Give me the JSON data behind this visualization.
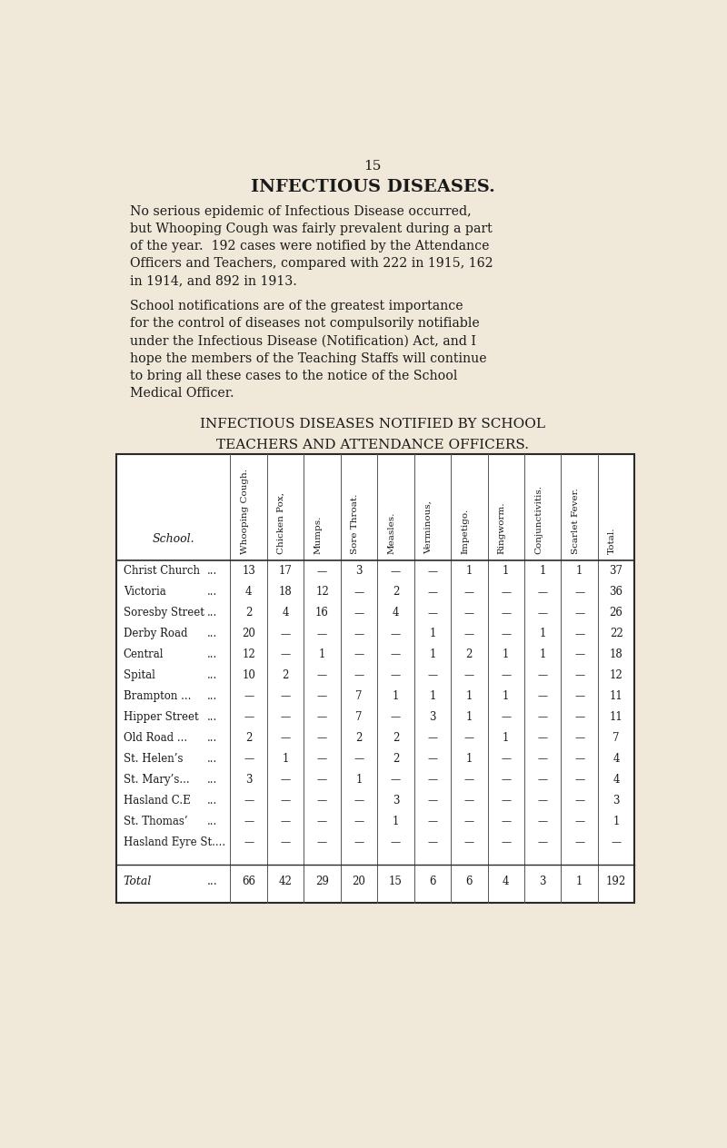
{
  "bg_color": "#f0e8d8",
  "page_number": "15",
  "title": "INFECTIOUS DISEASES.",
  "paragraph1_lines": [
    "No serious epidemic of Infectious Disease occurred,",
    "but Whooping Cough was fairly prevalent during a part",
    "of the year.  192 cases were notified by the Attendance",
    "Officers and Teachers, compared with 222 in 1915, 162",
    "in 1914, and 892 in 1913."
  ],
  "paragraph2_lines": [
    "School notifications are of the greatest importance",
    "for the control of diseases not compulsorily notifiable",
    "under the Infectious Disease (Notification) Act, and I",
    "hope the members of the Teaching Staffs will continue",
    "to bring all these cases to the notice of the School",
    "Medical Officer."
  ],
  "table_title1": "INFECTIOUS DISEASES NOTIFIED BY SCHOOL",
  "table_title2": "TEACHERS AND ATTENDANCE OFFICERS.",
  "col_headers": [
    "Whooping Cough.",
    "Chicken Pox,",
    "Mumps.",
    "Sore Throat.",
    "Measles.",
    "Verminous,",
    "Impetigo.",
    "Ringworm.",
    "Conjunctivitis.",
    "Scarlet Fever.",
    "Total."
  ],
  "row_label": "School.",
  "schools": [
    "Christ Church   ...",
    "Victoria   ...",
    "Soresby Street   ...",
    "Derby Road   ...",
    "Central   ...",
    "Spital   ...",
    "Brampton ...   ...",
    "Hipper Street   ...",
    "Old Road ...   ...",
    "St. Helen's   ...",
    "St. Mary's...   ...",
    "Hasland C.E   ...",
    "St. Thomas'   ...",
    "Hasland Eyre St...."
  ],
  "school_display": [
    [
      "Christ Church",
      "..."
    ],
    [
      "Victoria",
      "..."
    ],
    [
      "Soresby Street",
      "..."
    ],
    [
      "Derby Road",
      "..."
    ],
    [
      "Central",
      "..."
    ],
    [
      "Spital",
      "..."
    ],
    [
      "Brampton ...",
      "..."
    ],
    [
      "Hipper Street",
      "..."
    ],
    [
      "Old Road ...",
      "..."
    ],
    [
      "St. Helen’s",
      "..."
    ],
    [
      "St. Mary’s...",
      "..."
    ],
    [
      "Hasland C.E",
      "..."
    ],
    [
      "St. Thomas’",
      "..."
    ],
    [
      "Hasland Eyre St....",
      ""
    ]
  ],
  "data": [
    [
      13,
      17,
      0,
      3,
      0,
      0,
      1,
      1,
      1,
      1,
      37
    ],
    [
      4,
      18,
      12,
      0,
      2,
      0,
      0,
      0,
      0,
      0,
      36
    ],
    [
      2,
      4,
      16,
      0,
      4,
      0,
      0,
      0,
      0,
      0,
      26
    ],
    [
      20,
      0,
      0,
      0,
      0,
      1,
      0,
      0,
      1,
      0,
      22
    ],
    [
      12,
      0,
      1,
      0,
      0,
      1,
      2,
      1,
      1,
      0,
      18
    ],
    [
      10,
      2,
      0,
      0,
      0,
      0,
      0,
      0,
      0,
      0,
      12
    ],
    [
      0,
      0,
      0,
      7,
      1,
      1,
      1,
      1,
      0,
      0,
      11
    ],
    [
      0,
      0,
      0,
      7,
      0,
      3,
      1,
      0,
      0,
      0,
      11
    ],
    [
      2,
      0,
      0,
      2,
      2,
      0,
      0,
      1,
      0,
      0,
      7
    ],
    [
      0,
      1,
      0,
      0,
      2,
      0,
      1,
      0,
      0,
      0,
      4
    ],
    [
      3,
      0,
      0,
      1,
      0,
      0,
      0,
      0,
      0,
      0,
      4
    ],
    [
      0,
      0,
      0,
      0,
      3,
      0,
      0,
      0,
      0,
      0,
      3
    ],
    [
      0,
      0,
      0,
      0,
      1,
      0,
      0,
      0,
      0,
      0,
      1
    ],
    [
      0,
      0,
      0,
      0,
      0,
      0,
      0,
      0,
      0,
      0,
      0
    ]
  ],
  "totals": [
    66,
    42,
    29,
    20,
    15,
    6,
    6,
    4,
    3,
    1,
    192
  ],
  "total_label": "Total",
  "total_dots": "..."
}
